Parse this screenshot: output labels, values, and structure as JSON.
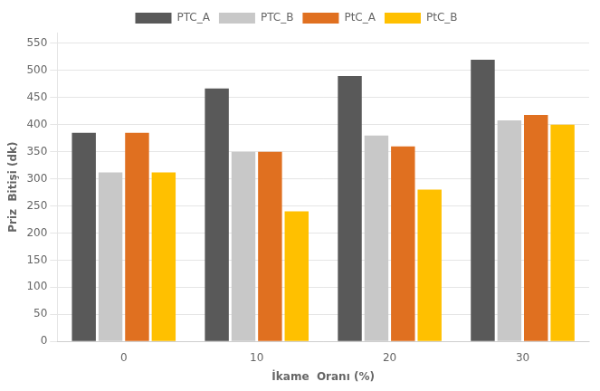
{
  "chart_data": {
    "type": "bar",
    "categories": [
      "0",
      "10",
      "20",
      "30"
    ],
    "series": [
      {
        "name": "PTC_A",
        "color": "#595959",
        "values": [
          385,
          467,
          490,
          520
        ]
      },
      {
        "name": "PTC_B",
        "color": "#c8c8c8",
        "values": [
          312,
          350,
          380,
          408
        ]
      },
      {
        "name": "PtC_A",
        "color": "#e07020",
        "values": [
          385,
          350,
          360,
          418
        ]
      },
      {
        "name": "PtC_B",
        "color": "#ffc000",
        "values": [
          312,
          240,
          280,
          400
        ]
      }
    ],
    "xlabel": "İkame  Oranı (%)",
    "ylabel": "Priz  Bitişi (dk)",
    "ylim": [
      0,
      570
    ],
    "yticks": [
      0,
      50,
      100,
      150,
      200,
      250,
      300,
      350,
      400,
      450,
      500,
      550
    ],
    "grid": true,
    "legend": "top"
  }
}
